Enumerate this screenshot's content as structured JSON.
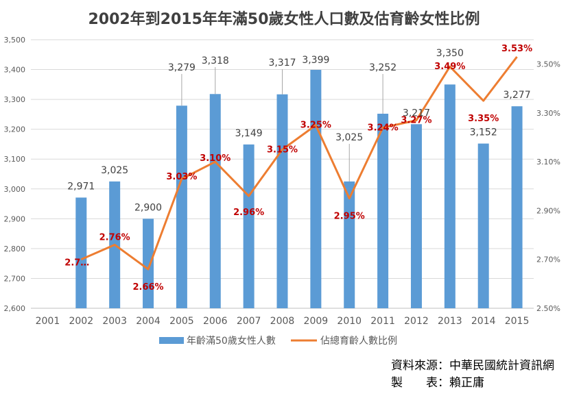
{
  "title": "2002年到2015年年滿50歲女性人口數及估育齡女性比例",
  "source": {
    "line1": "資料來源：中華民國統計資訊網",
    "line2": "製　　表：賴正庸"
  },
  "colors": {
    "bar": "#5b9bd5",
    "line": "#ed7d31",
    "rate_label": "#c00000",
    "grid": "#d9d9d9"
  },
  "chart_data": {
    "type": "bar",
    "categories": [
      "2001",
      "2002",
      "2003",
      "2004",
      "2005",
      "2006",
      "2007",
      "2008",
      "2009",
      "2010",
      "2011",
      "2012",
      "2013",
      "2014",
      "2015"
    ],
    "series": [
      {
        "name": "年齡滿50歲女性人數",
        "type": "bar",
        "axis": "left",
        "values": [
          null,
          2971,
          3025,
          2900,
          3279,
          3318,
          3149,
          3317,
          3399,
          3025,
          3252,
          3217,
          3350,
          3152,
          3277
        ],
        "labels": [
          "",
          "2,971",
          "3,025",
          "2,900",
          "3,279",
          "3,318",
          "3,149",
          "3,317",
          "3,399",
          "3,025",
          "3,252",
          "3,217",
          "3,350",
          "3,152",
          "3,277"
        ]
      },
      {
        "name": "佔總育齡人數比例",
        "type": "line",
        "axis": "right",
        "values": [
          null,
          2.7,
          2.76,
          2.66,
          3.03,
          3.1,
          2.96,
          3.15,
          3.25,
          2.95,
          3.24,
          3.27,
          3.49,
          3.35,
          3.53
        ],
        "labels": [
          "",
          "2.7…",
          "2.76%",
          "2.66%",
          "3.03%",
          "3.10%",
          "2.96%",
          "3.15%",
          "3.25%",
          "2.95%",
          "3.24%",
          "3.27%",
          "3.49%",
          "3.35%",
          "3.53%"
        ]
      }
    ],
    "y_left": {
      "range": [
        2600,
        3500
      ],
      "ticks": [
        "2,600",
        "2,700",
        "2,800",
        "2,900",
        "3,000",
        "3,100",
        "3,200",
        "3,300",
        "3,400",
        "3,500"
      ]
    },
    "y_right": {
      "range": [
        2.5,
        3.6
      ],
      "ticks": [
        "2.50%",
        "2.70%",
        "2.90%",
        "3.10%",
        "3.30%",
        "3.50%"
      ]
    },
    "grid": true,
    "legend_position": "bottom"
  }
}
